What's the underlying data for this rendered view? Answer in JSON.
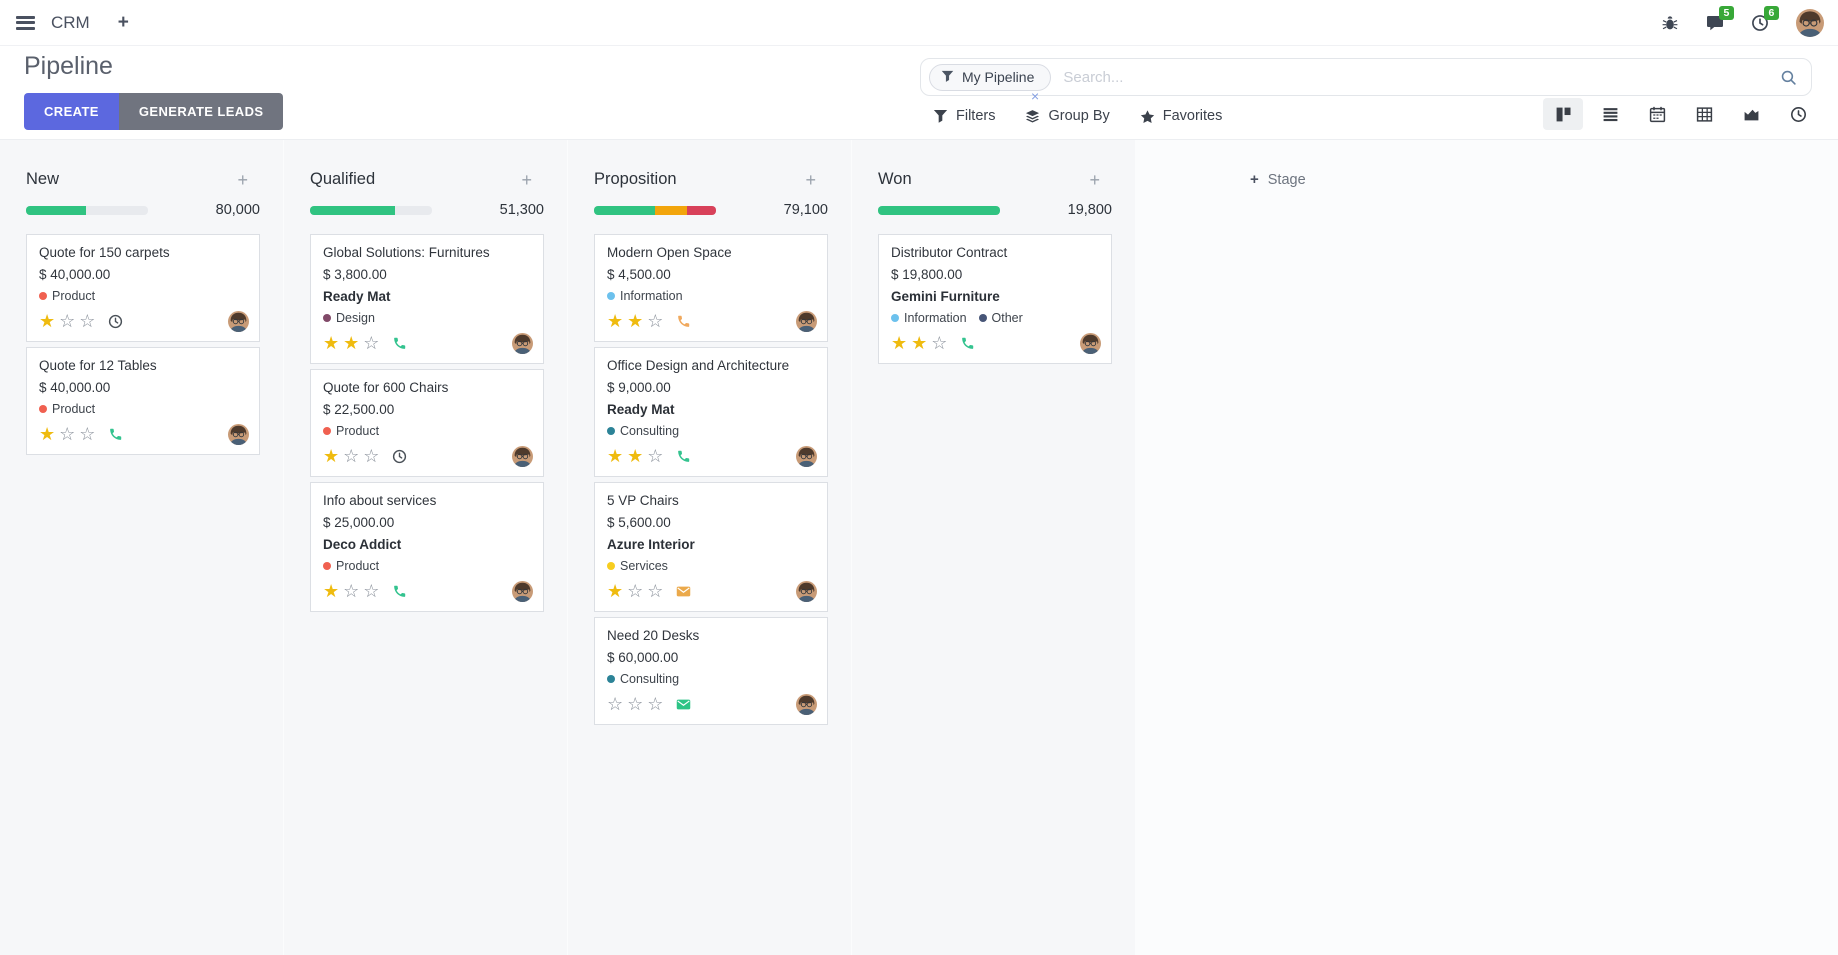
{
  "navbar": {
    "app_name": "CRM",
    "message_count": "5",
    "activity_count": "6"
  },
  "colors": {
    "badge": "#38A838",
    "primary": "#5C68DF",
    "secondary": "#70747F"
  },
  "control_panel": {
    "title": "Pipeline",
    "buttons": {
      "create": "CREATE",
      "generate": "GENERATE LEADS"
    },
    "search": {
      "facet": "My Pipeline",
      "placeholder": "Search..."
    },
    "menus": {
      "filters": "Filters",
      "group_by": "Group By",
      "favorites": "Favorites"
    }
  },
  "kanban": {
    "add_stage": "Stage",
    "columns": [
      {
        "title": "New",
        "amount": "80,000",
        "progress": [
          {
            "color": "#30C381",
            "pct": 49
          }
        ],
        "cards": [
          {
            "title": "Quote for 150 carpets",
            "amount": "$ 40,000.00",
            "tags": [
              {
                "label": "Product",
                "color": "#F06050"
              }
            ],
            "stars": [
              "filled",
              "empty",
              "empty"
            ],
            "activity": {
              "type": "clock",
              "color": "#495057"
            }
          },
          {
            "title": "Quote for 12 Tables",
            "amount": "$ 40,000.00",
            "tags": [
              {
                "label": "Product",
                "color": "#F06050"
              }
            ],
            "stars": [
              "filled",
              "empty",
              "empty"
            ],
            "activity": {
              "type": "phone",
              "color": "#34C38F"
            }
          }
        ]
      },
      {
        "title": "Qualified",
        "amount": "51,300",
        "progress": [
          {
            "color": "#30C381",
            "pct": 70
          }
        ],
        "cards": [
          {
            "title": "Global Solutions: Furnitures",
            "amount": "$ 3,800.00",
            "partner": "Ready Mat",
            "tags": [
              {
                "label": "Design",
                "color": "#814968"
              }
            ],
            "stars": [
              "filled",
              "filled",
              "empty"
            ],
            "activity": {
              "type": "phone",
              "color": "#34C38F"
            }
          },
          {
            "title": "Quote for 600 Chairs",
            "amount": "$ 22,500.00",
            "tags": [
              {
                "label": "Product",
                "color": "#F06050"
              }
            ],
            "stars": [
              "filled",
              "empty",
              "empty"
            ],
            "activity": {
              "type": "clock",
              "color": "#495057"
            }
          },
          {
            "title": "Info about services",
            "amount": "$ 25,000.00",
            "partner": "Deco Addict",
            "tags": [
              {
                "label": "Product",
                "color": "#F06050"
              }
            ],
            "stars": [
              "filled",
              "empty",
              "empty"
            ],
            "activity": {
              "type": "phone",
              "color": "#34C38F"
            }
          }
        ]
      },
      {
        "title": "Proposition",
        "amount": "79,100",
        "progress": [
          {
            "color": "#30C381",
            "pct": 50
          },
          {
            "color": "#F2A50C",
            "pct": 26
          },
          {
            "color": "#D8415A",
            "pct": 24
          }
        ],
        "cards": [
          {
            "title": "Modern Open Space",
            "amount": "$ 4,500.00",
            "tags": [
              {
                "label": "Information",
                "color": "#6CC1ED"
              }
            ],
            "stars": [
              "filled",
              "filled",
              "empty"
            ],
            "activity": {
              "type": "phone",
              "color": "#F0A95E"
            }
          },
          {
            "title": "Office Design and Architecture",
            "amount": "$ 9,000.00",
            "partner": "Ready Mat",
            "tags": [
              {
                "label": "Consulting",
                "color": "#2C8397"
              }
            ],
            "stars": [
              "filled",
              "filled",
              "empty"
            ],
            "activity": {
              "type": "phone",
              "color": "#34C38F"
            }
          },
          {
            "title": "5 VP Chairs",
            "amount": "$ 5,600.00",
            "partner": "Azure Interior",
            "tags": [
              {
                "label": "Services",
                "color": "#F7CD1F"
              }
            ],
            "stars": [
              "filled",
              "empty",
              "empty"
            ],
            "activity": {
              "type": "envelope",
              "color": "#EBA94B"
            }
          },
          {
            "title": "Need 20 Desks",
            "amount": "$ 60,000.00",
            "tags": [
              {
                "label": "Consulting",
                "color": "#2C8397"
              }
            ],
            "stars": [
              "empty",
              "empty",
              "empty"
            ],
            "activity": {
              "type": "envelope",
              "color": "#2DC486"
            }
          }
        ]
      },
      {
        "title": "Won",
        "amount": "19,800",
        "progress": [
          {
            "color": "#30C381",
            "pct": 100
          }
        ],
        "cards": [
          {
            "title": "Distributor Contract",
            "amount": "$ 19,800.00",
            "partner": "Gemini Furniture",
            "tags": [
              {
                "label": "Information",
                "color": "#6CC1ED"
              },
              {
                "label": "Other",
                "color": "#475577"
              }
            ],
            "stars": [
              "filled",
              "filled",
              "empty"
            ],
            "activity": {
              "type": "phone",
              "color": "#34C38F"
            }
          }
        ]
      }
    ]
  }
}
